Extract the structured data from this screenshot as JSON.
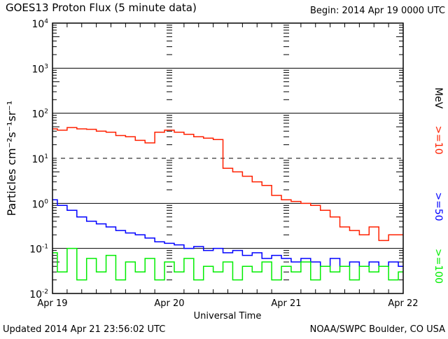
{
  "chart_data": {
    "type": "line",
    "title": "GOES13 Proton Flux (5 minute data)",
    "begin_label": "Begin: 2014 Apr 19 0000 UTC",
    "xlabel": "Universal Time",
    "ylabel": "Particles cm⁻²s⁻¹sr⁻¹",
    "yscale": "log",
    "ylim": [
      0.01,
      10000
    ],
    "y_ticks": [
      {
        "value": 10000,
        "base": "10",
        "exp": "4"
      },
      {
        "value": 1000,
        "base": "10",
        "exp": "3"
      },
      {
        "value": 100,
        "base": "10",
        "exp": "2"
      },
      {
        "value": 10,
        "base": "10",
        "exp": "1"
      },
      {
        "value": 1,
        "base": "10",
        "exp": "0"
      },
      {
        "value": 0.1,
        "base": "10",
        "exp": "-1"
      },
      {
        "value": 0.01,
        "base": "10",
        "exp": "-2"
      }
    ],
    "xlim_hours": [
      0,
      72
    ],
    "x_ticks": [
      {
        "hour": 0,
        "label": "Apr 19"
      },
      {
        "hour": 24,
        "label": "Apr 20"
      },
      {
        "hour": 48,
        "label": "Apr 21"
      },
      {
        "hour": 72,
        "label": "Apr 22"
      }
    ],
    "x_hours": [
      0,
      2,
      4,
      6,
      8,
      10,
      12,
      14,
      16,
      18,
      20,
      22,
      24,
      26,
      28,
      30,
      32,
      34,
      36,
      38,
      40,
      42,
      44,
      46,
      48,
      50,
      52,
      54,
      56,
      58,
      60,
      62,
      64,
      66,
      68,
      70,
      72
    ],
    "series": [
      {
        "name": ">=10",
        "color": "#ff2000",
        "values": [
          45,
          42,
          48,
          45,
          44,
          40,
          38,
          32,
          30,
          25,
          22,
          38,
          42,
          38,
          34,
          30,
          28,
          26,
          6,
          5,
          4,
          3,
          2.5,
          1.5,
          1.2,
          1.1,
          1.0,
          0.9,
          0.7,
          0.5,
          0.3,
          0.25,
          0.2,
          0.3,
          0.15,
          0.2,
          0.2
        ]
      },
      {
        "name": ">=50",
        "color": "#0000ff",
        "values": [
          1.2,
          0.9,
          0.7,
          0.5,
          0.4,
          0.35,
          0.3,
          0.25,
          0.22,
          0.2,
          0.17,
          0.14,
          0.13,
          0.12,
          0.1,
          0.11,
          0.09,
          0.1,
          0.08,
          0.09,
          0.07,
          0.08,
          0.06,
          0.07,
          0.06,
          0.05,
          0.06,
          0.05,
          0.04,
          0.06,
          0.04,
          0.05,
          0.04,
          0.05,
          0.04,
          0.05,
          0.04
        ]
      },
      {
        "name": ">=100",
        "color": "#00ee00",
        "values": [
          0.08,
          0.03,
          0.1,
          0.02,
          0.06,
          0.03,
          0.07,
          0.02,
          0.05,
          0.03,
          0.06,
          0.02,
          0.05,
          0.03,
          0.06,
          0.02,
          0.04,
          0.03,
          0.05,
          0.02,
          0.04,
          0.03,
          0.05,
          0.02,
          0.04,
          0.03,
          0.05,
          0.02,
          0.04,
          0.03,
          0.04,
          0.02,
          0.04,
          0.03,
          0.04,
          0.02,
          0.03
        ]
      }
    ],
    "unit_label": "MeV",
    "grid": "log decades, 10^1 dashed"
  },
  "footer": {
    "updated": "Updated 2014 Apr 21 23:56:02 UTC",
    "source": "NOAA/SWPC Boulder, CO USA"
  }
}
